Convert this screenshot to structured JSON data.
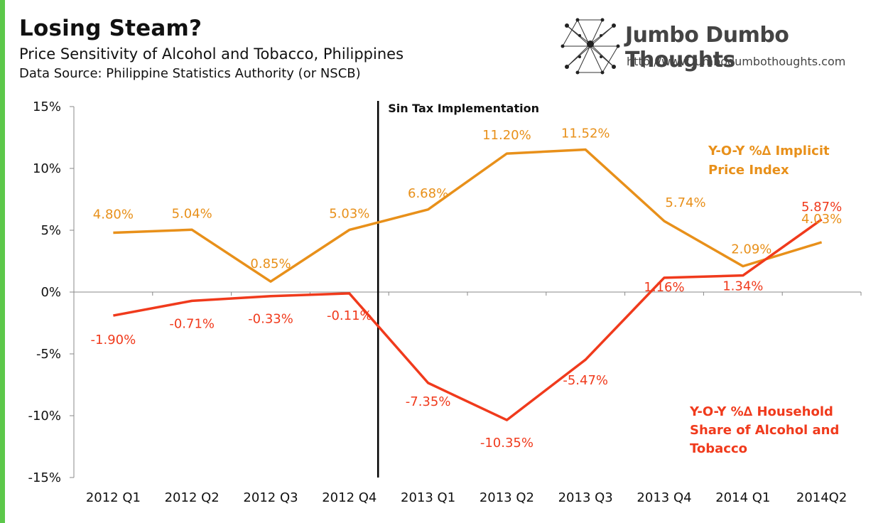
{
  "header": {
    "title": "Losing Steam?",
    "subtitle": "Price Sensitivity of  Alcohol and Tobacco, Philippines",
    "source": "Data Source: Philippine Statistics Authority (or NSCB)"
  },
  "logo": {
    "name": "Jumbo Dumbo Thoughts",
    "url": "http://www.jumbodumbothoughts.com"
  },
  "colors": {
    "accent": "#5cc84a",
    "price_series": "#e8901a",
    "share_series": "#f03a1c"
  },
  "chart_data": {
    "type": "line",
    "categories": [
      "2012 Q1",
      "2012 Q2",
      "2012 Q3",
      "2012 Q4",
      "2013 Q1",
      "2013 Q2",
      "2013 Q3",
      "2013 Q4",
      "2014 Q1",
      "2014Q2"
    ],
    "ylim": [
      -15,
      15
    ],
    "yticks": [
      "15%",
      "10%",
      "5%",
      "0%",
      "-5%",
      "-10%",
      "-15%"
    ],
    "ytick_values": [
      15,
      10,
      5,
      0,
      -5,
      -10,
      -15
    ],
    "grid": false,
    "series": [
      {
        "name_lines": [
          "Y-O-Y %∆ Implicit",
          "Price Index"
        ],
        "values": [
          4.8,
          5.04,
          0.85,
          5.03,
          6.68,
          11.2,
          11.52,
          5.74,
          2.09,
          4.03
        ],
        "labels": [
          "4.80%",
          "5.04%",
          "0.85%",
          "5.03%",
          "6.68%",
          "11.20%",
          "11.52%",
          "5.74%",
          "2.09%",
          "4.03%"
        ]
      },
      {
        "name_lines": [
          "Y-O-Y %∆ Household",
          "Share of Alcohol and",
          "Tobacco"
        ],
        "values": [
          -1.9,
          -0.71,
          -0.33,
          -0.11,
          -7.35,
          -10.35,
          -5.47,
          1.16,
          1.34,
          5.87
        ],
        "labels": [
          "-1.90%",
          "-0.71%",
          "-0.33%",
          "-0.11%",
          "-7.35%",
          "-10.35%",
          "-5.47%",
          "1.16%",
          "1.34%",
          "5.87%"
        ]
      }
    ],
    "annotation": {
      "text": "Sin Tax Implementation"
    }
  }
}
